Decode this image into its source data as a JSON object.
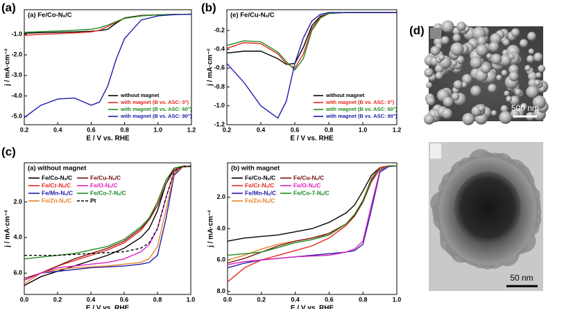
{
  "panel_labels": [
    "(a)",
    "(b)",
    "(c)",
    "(d)"
  ],
  "chart_data": [
    {
      "type": "line",
      "title": "(a) Fe/Co-Nₓ/C",
      "xlabel": "E / V vs. RHE",
      "ylabel": "j / mA·cm⁻²",
      "x": [
        0.2,
        0.3,
        0.4,
        0.5,
        0.6,
        0.65,
        0.7,
        0.75,
        0.8,
        0.9,
        1.0,
        1.1,
        1.2
      ],
      "xlim": [
        0.2,
        1.2
      ],
      "xticks": [
        0.2,
        0.4,
        0.6,
        0.8,
        {
          "value": 1,
          "label": "1.0"
        },
        1.2
      ],
      "ylim": [
        -5.4,
        0.2
      ],
      "yticks": [
        {
          "value": -1,
          "label": "-1.0"
        },
        {
          "value": -2,
          "label": "-2.0"
        },
        {
          "value": -3,
          "label": "-3.0"
        },
        {
          "value": -4,
          "label": "-4.0"
        },
        {
          "value": -5,
          "label": "-5.0"
        }
      ],
      "legend": "lower right",
      "series": [
        {
          "name": "without magnet",
          "color": "#000000",
          "values": [
            -0.95,
            -0.92,
            -0.9,
            -0.88,
            -0.85,
            -0.82,
            -0.75,
            -0.45,
            -0.2,
            -0.08,
            -0.05,
            -0.03,
            -0.02
          ]
        },
        {
          "name": "with magnet (B vs. ASC: 0°)",
          "color": "#e8261f",
          "values": [
            -1.05,
            -1.0,
            -0.97,
            -0.93,
            -0.88,
            -0.8,
            -0.62,
            -0.4,
            -0.22,
            -0.1,
            -0.05,
            -0.03,
            -0.02
          ]
        },
        {
          "name": "with magnet (B vs. ASC: 60°)",
          "color": "#1e8a1e",
          "values": [
            -0.9,
            -0.87,
            -0.84,
            -0.8,
            -0.75,
            -0.68,
            -0.55,
            -0.38,
            -0.22,
            -0.1,
            -0.05,
            -0.03,
            -0.02
          ]
        },
        {
          "name": "with magnet (B vs. ASC: 90°)",
          "color": "#1c1ca8",
          "values": [
            -5.05,
            -4.45,
            -4.15,
            -4.1,
            -4.45,
            -4.3,
            -3.5,
            -2.2,
            -1.2,
            -0.3,
            -0.1,
            -0.04,
            -0.02
          ]
        }
      ]
    },
    {
      "type": "line",
      "title": "(e) Fe/Cu-Nₓ/C",
      "xlabel": "E / V vs. RHE",
      "ylabel": "j / mA·cm⁻²",
      "x": [
        0.2,
        0.3,
        0.4,
        0.5,
        0.55,
        0.6,
        0.65,
        0.7,
        0.75,
        0.8,
        0.9,
        1.0,
        1.2
      ],
      "xlim": [
        0.2,
        1.2
      ],
      "xticks": [
        0.2,
        0.4,
        0.6,
        0.8,
        {
          "value": 1,
          "label": "1.0"
        },
        1.2
      ],
      "ylim": [
        -1.2,
        0.02
      ],
      "yticks": [
        -0.2,
        -0.4,
        -0.6,
        -0.8,
        {
          "value": -1,
          "label": "-1.0"
        },
        -1.2
      ],
      "legend": "lower right",
      "series": [
        {
          "name": "without magnet",
          "color": "#000000",
          "values": [
            -0.44,
            -0.42,
            -0.42,
            -0.5,
            -0.56,
            -0.55,
            -0.38,
            -0.15,
            -0.05,
            -0.02,
            -0.01,
            -0.01,
            -0.01
          ]
        },
        {
          "name": "with magnet (B vs. ASC: 0°)",
          "color": "#e8261f",
          "values": [
            -0.39,
            -0.33,
            -0.34,
            -0.45,
            -0.55,
            -0.6,
            -0.45,
            -0.18,
            -0.06,
            -0.02,
            -0.01,
            -0.01,
            -0.01
          ]
        },
        {
          "name": "with magnet (B vs. ASC: 60°)",
          "color": "#1e8a1e",
          "values": [
            -0.36,
            -0.31,
            -0.32,
            -0.43,
            -0.53,
            -0.62,
            -0.5,
            -0.2,
            -0.07,
            -0.02,
            -0.01,
            -0.01,
            -0.01
          ]
        },
        {
          "name": "with magnet (B vs. ASC: 90°)",
          "color": "#1c1ca8",
          "values": [
            -0.55,
            -0.75,
            -1.0,
            -1.13,
            -0.95,
            -0.55,
            -0.28,
            -0.1,
            -0.03,
            -0.01,
            -0.01,
            -0.01,
            -0.01
          ]
        }
      ]
    },
    {
      "type": "line",
      "title": "(a) without magnet",
      "xlabel": "E / V vs. RHE",
      "ylabel": "j / mA·cm⁻²",
      "x": [
        0,
        0.1,
        0.2,
        0.3,
        0.4,
        0.5,
        0.6,
        0.7,
        0.75,
        0.8,
        0.85,
        0.9,
        0.95,
        1.0
      ],
      "xlim": [
        0,
        1
      ],
      "xticks": [
        {
          "value": 0,
          "label": "0.0"
        },
        0.2,
        0.4,
        0.6,
        0.8,
        {
          "value": 1,
          "label": "1.0"
        }
      ],
      "ylim": [
        -0.2,
        7.2
      ],
      "y_inverted": true,
      "yticks": [
        {
          "value": 2,
          "label": "2.0"
        },
        {
          "value": 4,
          "label": "4.0"
        },
        {
          "value": 6,
          "label": "6.0"
        }
      ],
      "legend": "upper left",
      "series": [
        {
          "name": "Fe/Co-Nₓ/C",
          "color": "#000000",
          "values": [
            6.7,
            6.2,
            5.9,
            5.6,
            5.3,
            5.0,
            4.6,
            4.0,
            3.5,
            2.5,
            1.0,
            0.1,
            0,
            0
          ]
        },
        {
          "name": "Fe/Cr-Nₓ/C",
          "color": "#e8261f",
          "values": [
            6.4,
            6.0,
            5.6,
            5.3,
            5.0,
            4.7,
            4.3,
            3.6,
            3.0,
            2.0,
            0.8,
            0.1,
            0,
            0
          ]
        },
        {
          "name": "Fe/Mn-Nₓ/C",
          "color": "#1c1ca8",
          "values": [
            6.4,
            6.0,
            5.9,
            5.8,
            5.7,
            5.65,
            5.6,
            5.5,
            5.4,
            5.0,
            3.0,
            0.5,
            0.05,
            0
          ]
        },
        {
          "name": "Fe/Zn-Nₓ/C",
          "color": "#e8822a",
          "values": [
            6.6,
            6.0,
            5.8,
            5.7,
            5.65,
            5.6,
            5.5,
            5.4,
            5.2,
            4.5,
            2.5,
            0.4,
            0.05,
            0
          ]
        },
        {
          "name": "Fe/Cu-Nₓ/C",
          "color": "#7a1010",
          "values": [
            6.3,
            6.0,
            5.6,
            5.2,
            4.9,
            4.6,
            4.2,
            3.5,
            3.0,
            2.2,
            1.0,
            0.2,
            0,
            0
          ]
        },
        {
          "name": "Fe/O-Nₓ/C",
          "color": "#e020c0",
          "values": [
            6.4,
            6.0,
            5.7,
            5.6,
            5.5,
            5.4,
            5.2,
            4.8,
            4.4,
            3.5,
            1.8,
            0.3,
            0.02,
            0
          ]
        },
        {
          "name": "Fe/Co-7-Nₓ/C",
          "color": "#1e8a1e",
          "values": [
            5.2,
            5.1,
            5.0,
            4.9,
            4.7,
            4.5,
            4.1,
            3.4,
            2.9,
            2.0,
            0.8,
            0.1,
            0,
            0
          ]
        },
        {
          "name": "Pt",
          "color": "#000000",
          "linestyle": "dashed",
          "values": [
            5.0,
            5.0,
            5.0,
            4.95,
            4.9,
            4.85,
            4.8,
            4.6,
            4.3,
            3.5,
            1.8,
            0.3,
            0,
            0
          ]
        }
      ]
    },
    {
      "type": "line",
      "title": "(b) with magnet",
      "xlabel": "E / V vs. RHE",
      "ylabel": "j / mA·cm⁻²",
      "x": [
        0,
        0.1,
        0.2,
        0.3,
        0.4,
        0.5,
        0.6,
        0.7,
        0.75,
        0.8,
        0.85,
        0.9,
        0.95,
        1.0
      ],
      "xlim": [
        0,
        1
      ],
      "xticks": [
        {
          "value": 0,
          "label": "0.0"
        },
        0.2,
        0.4,
        0.6,
        0.8,
        {
          "value": 1,
          "label": "1.0"
        }
      ],
      "ylim": [
        -0.2,
        8.2
      ],
      "y_inverted": true,
      "yticks": [
        {
          "value": 2,
          "label": "2.0"
        },
        {
          "value": 4,
          "label": "4.0"
        },
        {
          "value": 6,
          "label": "6.0"
        },
        {
          "value": 8,
          "label": "8.0"
        }
      ],
      "legend": "upper left",
      "series": [
        {
          "name": "Fe/Co-Nₓ/C",
          "color": "#000000",
          "values": [
            4.8,
            4.6,
            4.5,
            4.4,
            4.2,
            4.0,
            3.6,
            3.0,
            2.5,
            1.6,
            0.6,
            0.1,
            0,
            0
          ]
        },
        {
          "name": "Fe/Cr-Nₓ/C",
          "color": "#e8261f",
          "values": [
            7.4,
            6.5,
            6.0,
            5.7,
            5.4,
            5.1,
            4.6,
            3.8,
            3.2,
            2.2,
            0.8,
            0.1,
            0,
            0
          ]
        },
        {
          "name": "Fe/Mn-Nₓ/C",
          "color": "#1c1ca8",
          "values": [
            6.5,
            6.2,
            6.0,
            5.9,
            5.8,
            5.7,
            5.6,
            5.5,
            5.4,
            5.0,
            2.8,
            0.4,
            0.05,
            0
          ]
        },
        {
          "name": "Fe/Zn-Nₓ/C",
          "color": "#e8822a",
          "values": [
            6.0,
            5.7,
            5.3,
            5.0,
            4.8,
            4.6,
            4.4,
            3.7,
            3.1,
            2.2,
            0.9,
            0.2,
            0,
            0
          ]
        },
        {
          "name": "Fe/Cu-Nₓ/C",
          "color": "#7a1010",
          "values": [
            6.2,
            5.9,
            5.5,
            5.1,
            4.8,
            4.6,
            4.3,
            3.7,
            3.2,
            2.3,
            1.0,
            0.2,
            0,
            0
          ]
        },
        {
          "name": "Fe/O-Nₓ/C",
          "color": "#e020c0",
          "values": [
            6.3,
            6.1,
            6.0,
            5.9,
            5.8,
            5.75,
            5.7,
            5.5,
            5.3,
            4.8,
            2.5,
            0.3,
            0.02,
            0
          ]
        },
        {
          "name": "Fe/Co-7-Nₓ/C",
          "color": "#1e8a1e",
          "values": [
            5.7,
            5.6,
            5.5,
            5.2,
            4.9,
            4.7,
            4.4,
            3.7,
            3.1,
            2.2,
            0.9,
            0.2,
            0,
            0
          ]
        }
      ]
    }
  ],
  "images": [
    {
      "scale_bar": "500 nm"
    },
    {
      "scale_bar": "50 nm"
    }
  ]
}
